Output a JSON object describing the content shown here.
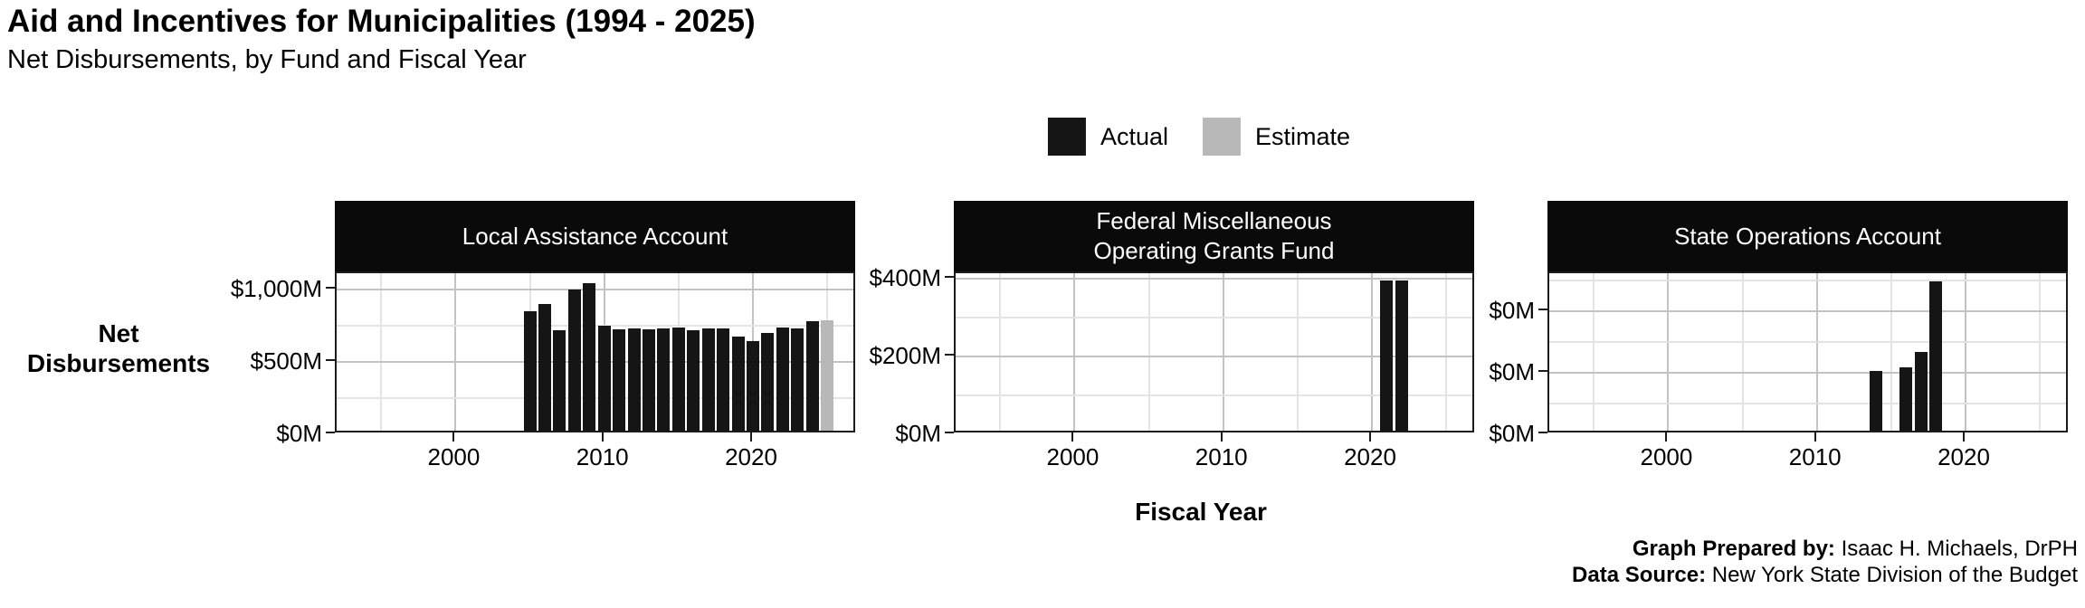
{
  "header": {
    "title": "Aid and Incentives for Municipalities (1994 - 2025)",
    "subtitle": "Net Disbursements, by Fund and Fiscal Year"
  },
  "legend": {
    "items": [
      {
        "label": "Actual",
        "color": "#151515"
      },
      {
        "label": "Estimate",
        "color": "#b8b8b8"
      }
    ]
  },
  "axes": {
    "y_title_line1": "Net",
    "y_title_line2": "Disbursements",
    "x_title": "Fiscal Year",
    "x_tick_labels": [
      "2000",
      "2010",
      "2020"
    ]
  },
  "footer": {
    "prepared_by_label": "Graph Prepared by:",
    "prepared_by_value": " Isaac H. Michaels, DrPH",
    "source_label": "Data Source:",
    "source_value": " New York State Division of the Budget"
  },
  "chart_data": [
    {
      "type": "bar",
      "facet": "Local Assistance Account",
      "x": [
        2005,
        2006,
        2007,
        2008,
        2009,
        2010,
        2011,
        2012,
        2013,
        2014,
        2015,
        2016,
        2017,
        2018,
        2019,
        2020,
        2021,
        2022,
        2023,
        2024,
        2025
      ],
      "values": [
        840,
        885,
        705,
        990,
        1030,
        735,
        715,
        716,
        714,
        720,
        722,
        707,
        718,
        716,
        662,
        630,
        688,
        722,
        716,
        770,
        775
      ],
      "status": [
        "actual",
        "actual",
        "actual",
        "actual",
        "actual",
        "actual",
        "actual",
        "actual",
        "actual",
        "actual",
        "actual",
        "actual",
        "actual",
        "actual",
        "actual",
        "actual",
        "actual",
        "actual",
        "actual",
        "actual",
        "estimate"
      ],
      "y_unit": "$M",
      "xlim": [
        1992,
        2027
      ],
      "x_ticks": [
        2000,
        2010,
        2020
      ],
      "x_minor": [
        1995,
        2005,
        2015,
        2025
      ],
      "y_axis": {
        "tick_values": [
          0,
          500,
          1000
        ],
        "tick_labels": [
          "$0M",
          "$500M",
          "$1,000M"
        ],
        "minor_values": [
          250,
          750
        ],
        "max": 1112
      }
    },
    {
      "type": "bar",
      "facet": "Federal Miscellaneous\nOperating Grants Fund",
      "x": [
        2021,
        2022
      ],
      "values": [
        390,
        390
      ],
      "status": [
        "actual",
        "actual"
      ],
      "y_unit": "$M",
      "xlim": [
        1992,
        2027
      ],
      "x_ticks": [
        2000,
        2010,
        2020
      ],
      "x_minor": [
        1995,
        2005,
        2015,
        2025
      ],
      "y_axis": {
        "tick_values": [
          0,
          200,
          400
        ],
        "tick_labels": [
          "$0M",
          "$200M",
          "$400M"
        ],
        "minor_values": [
          100,
          300
        ],
        "max": 414
      }
    },
    {
      "type": "bar",
      "facet": "State Operations Account",
      "x": [
        2014,
        2016,
        2017,
        2018,
        2019,
        2021
      ],
      "values": [
        0.2,
        0.21,
        0.26,
        0.49,
        0.005,
        0.005
      ],
      "status": [
        "actual",
        "actual",
        "actual",
        "actual",
        "actual",
        "actual"
      ],
      "y_unit": "$M",
      "xlim": [
        1992,
        2027
      ],
      "x_ticks": [
        2000,
        2010,
        2020
      ],
      "x_minor": [
        1995,
        2005,
        2015,
        2025
      ],
      "y_axis": {
        "tick_values": [
          0,
          0.2,
          0.4
        ],
        "tick_labels": [
          "$0M",
          "$0M",
          "$0M"
        ],
        "minor_values": [
          0.1,
          0.3,
          0.5
        ],
        "max": 0.522
      }
    }
  ]
}
